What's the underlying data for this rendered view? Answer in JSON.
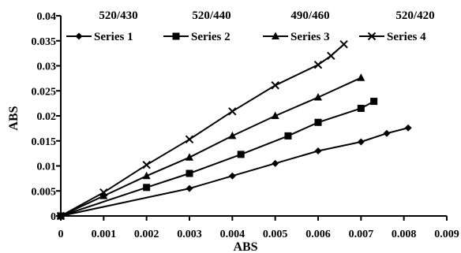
{
  "chart_data": {
    "type": "line",
    "title": "",
    "xlabel": "ABS",
    "ylabel": "ABS",
    "xlim": [
      0,
      0.009
    ],
    "ylim": [
      0,
      0.04
    ],
    "x_ticks": [
      "0",
      "0.001",
      "0.002",
      "0.003",
      "0.004",
      "0.005",
      "0.006",
      "0.007",
      "0.008",
      "0.009"
    ],
    "y_ticks": [
      "0",
      "0.005",
      "0.01",
      "0.015",
      "0.02",
      "0.025",
      "0.03",
      "0.035",
      "0.04"
    ],
    "grid": false,
    "legend_position": "top",
    "series": [
      {
        "name": "Series 1",
        "header": "520/430",
        "marker": "diamond",
        "color": "#000000",
        "points": [
          [
            0,
            0
          ],
          [
            0.003,
            0.0055
          ],
          [
            0.004,
            0.008
          ],
          [
            0.005,
            0.0105
          ],
          [
            0.006,
            0.013
          ],
          [
            0.007,
            0.0148
          ],
          [
            0.0076,
            0.0165
          ],
          [
            0.0081,
            0.0176
          ]
        ]
      },
      {
        "name": "Series 2",
        "header": "520/440",
        "marker": "square",
        "color": "#000000",
        "points": [
          [
            0,
            0
          ],
          [
            0.002,
            0.0057
          ],
          [
            0.003,
            0.0085
          ],
          [
            0.0042,
            0.0123
          ],
          [
            0.0053,
            0.016
          ],
          [
            0.006,
            0.0187
          ],
          [
            0.007,
            0.0215
          ],
          [
            0.0073,
            0.0229
          ]
        ]
      },
      {
        "name": "Series 3",
        "header": "490/460",
        "marker": "triangle",
        "color": "#000000",
        "points": [
          [
            0,
            0
          ],
          [
            0.001,
            0.004
          ],
          [
            0.002,
            0.008
          ],
          [
            0.003,
            0.0117
          ],
          [
            0.004,
            0.016
          ],
          [
            0.005,
            0.02
          ],
          [
            0.006,
            0.0237
          ],
          [
            0.007,
            0.0276
          ]
        ]
      },
      {
        "name": "Series 4",
        "header": "520/420",
        "marker": "x",
        "color": "#000000",
        "points": [
          [
            0,
            0
          ],
          [
            0.001,
            0.0047
          ],
          [
            0.002,
            0.0102
          ],
          [
            0.003,
            0.0153
          ],
          [
            0.004,
            0.0209
          ],
          [
            0.005,
            0.0261
          ],
          [
            0.006,
            0.0302
          ],
          [
            0.0063,
            0.032
          ],
          [
            0.0066,
            0.0343
          ]
        ]
      }
    ]
  }
}
